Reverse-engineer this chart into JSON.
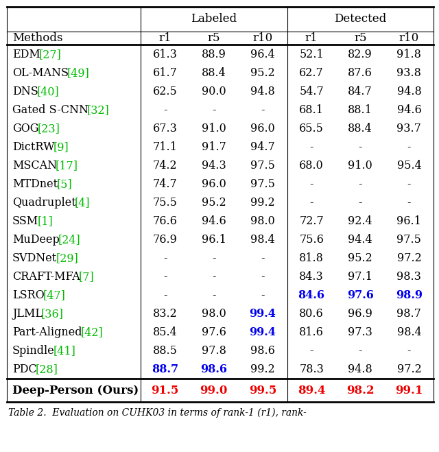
{
  "rows": [
    {
      "method": "EDM",
      "ref": "27",
      "vals": [
        "61.3",
        "88.9",
        "96.4",
        "52.1",
        "82.9",
        "91.8"
      ],
      "bold": [
        false,
        false,
        false,
        false,
        false,
        false
      ],
      "blue": [
        false,
        false,
        false,
        false,
        false,
        false
      ]
    },
    {
      "method": "OL-MANS",
      "ref": "49",
      "vals": [
        "61.7",
        "88.4",
        "95.2",
        "62.7",
        "87.6",
        "93.8"
      ],
      "bold": [
        false,
        false,
        false,
        false,
        false,
        false
      ],
      "blue": [
        false,
        false,
        false,
        false,
        false,
        false
      ]
    },
    {
      "method": "DNS",
      "ref": "40",
      "vals": [
        "62.5",
        "90.0",
        "94.8",
        "54.7",
        "84.7",
        "94.8"
      ],
      "bold": [
        false,
        false,
        false,
        false,
        false,
        false
      ],
      "blue": [
        false,
        false,
        false,
        false,
        false,
        false
      ]
    },
    {
      "method": "Gated S-CNN",
      "ref": "32",
      "vals": [
        "-",
        "-",
        "-",
        "68.1",
        "88.1",
        "94.6"
      ],
      "bold": [
        false,
        false,
        false,
        false,
        false,
        false
      ],
      "blue": [
        false,
        false,
        false,
        false,
        false,
        false
      ]
    },
    {
      "method": "GOG",
      "ref": "23",
      "vals": [
        "67.3",
        "91.0",
        "96.0",
        "65.5",
        "88.4",
        "93.7"
      ],
      "bold": [
        false,
        false,
        false,
        false,
        false,
        false
      ],
      "blue": [
        false,
        false,
        false,
        false,
        false,
        false
      ]
    },
    {
      "method": "DictRW",
      "ref": "9",
      "vals": [
        "71.1",
        "91.7",
        "94.7",
        "-",
        "-",
        "-"
      ],
      "bold": [
        false,
        false,
        false,
        false,
        false,
        false
      ],
      "blue": [
        false,
        false,
        false,
        false,
        false,
        false
      ]
    },
    {
      "method": "MSCAN",
      "ref": "17",
      "vals": [
        "74.2",
        "94.3",
        "97.5",
        "68.0",
        "91.0",
        "95.4"
      ],
      "bold": [
        false,
        false,
        false,
        false,
        false,
        false
      ],
      "blue": [
        false,
        false,
        false,
        false,
        false,
        false
      ]
    },
    {
      "method": "MTDnet",
      "ref": "5",
      "vals": [
        "74.7",
        "96.0",
        "97.5",
        "-",
        "-",
        "-"
      ],
      "bold": [
        false,
        false,
        false,
        false,
        false,
        false
      ],
      "blue": [
        false,
        false,
        false,
        false,
        false,
        false
      ]
    },
    {
      "method": "Quadruplet",
      "ref": "4",
      "vals": [
        "75.5",
        "95.2",
        "99.2",
        "-",
        "-",
        "-"
      ],
      "bold": [
        false,
        false,
        false,
        false,
        false,
        false
      ],
      "blue": [
        false,
        false,
        false,
        false,
        false,
        false
      ]
    },
    {
      "method": "SSM",
      "ref": "1",
      "vals": [
        "76.6",
        "94.6",
        "98.0",
        "72.7",
        "92.4",
        "96.1"
      ],
      "bold": [
        false,
        false,
        false,
        false,
        false,
        false
      ],
      "blue": [
        false,
        false,
        false,
        false,
        false,
        false
      ]
    },
    {
      "method": "MuDeep",
      "ref": "24",
      "vals": [
        "76.9",
        "96.1",
        "98.4",
        "75.6",
        "94.4",
        "97.5"
      ],
      "bold": [
        false,
        false,
        false,
        false,
        false,
        false
      ],
      "blue": [
        false,
        false,
        false,
        false,
        false,
        false
      ]
    },
    {
      "method": "SVDNet",
      "ref": "29",
      "vals": [
        "-",
        "-",
        "-",
        "81.8",
        "95.2",
        "97.2"
      ],
      "bold": [
        false,
        false,
        false,
        false,
        false,
        false
      ],
      "blue": [
        false,
        false,
        false,
        false,
        false,
        false
      ]
    },
    {
      "method": "CRAFT-MFA",
      "ref": "7",
      "vals": [
        "-",
        "-",
        "-",
        "84.3",
        "97.1",
        "98.3"
      ],
      "bold": [
        false,
        false,
        false,
        false,
        false,
        false
      ],
      "blue": [
        false,
        false,
        false,
        false,
        false,
        false
      ]
    },
    {
      "method": "LSRO",
      "ref": "47",
      "vals": [
        "-",
        "-",
        "-",
        "84.6",
        "97.6",
        "98.9"
      ],
      "bold": [
        false,
        false,
        false,
        true,
        true,
        true
      ],
      "blue": [
        false,
        false,
        false,
        true,
        true,
        true
      ]
    },
    {
      "method": "JLML",
      "ref": "36",
      "vals": [
        "83.2",
        "98.0",
        "99.4",
        "80.6",
        "96.9",
        "98.7"
      ],
      "bold": [
        false,
        false,
        true,
        false,
        false,
        false
      ],
      "blue": [
        false,
        false,
        true,
        false,
        false,
        false
      ]
    },
    {
      "method": "Part-Aligned",
      "ref": "42",
      "vals": [
        "85.4",
        "97.6",
        "99.4",
        "81.6",
        "97.3",
        "98.4"
      ],
      "bold": [
        false,
        false,
        true,
        false,
        false,
        false
      ],
      "blue": [
        false,
        false,
        true,
        false,
        false,
        false
      ]
    },
    {
      "method": "Spindle",
      "ref": "41",
      "vals": [
        "88.5",
        "97.8",
        "98.6",
        "-",
        "-",
        "-"
      ],
      "bold": [
        false,
        false,
        false,
        false,
        false,
        false
      ],
      "blue": [
        false,
        false,
        false,
        false,
        false,
        false
      ]
    },
    {
      "method": "PDC",
      "ref": "28",
      "vals": [
        "88.7",
        "98.6",
        "99.2",
        "78.3",
        "94.8",
        "97.2"
      ],
      "bold": [
        true,
        true,
        false,
        false,
        false,
        false
      ],
      "blue": [
        true,
        true,
        false,
        false,
        false,
        false
      ]
    }
  ],
  "last_row": {
    "method": "Deep-Person (Ours)",
    "vals": [
      "91.5",
      "99.0",
      "99.5",
      "89.4",
      "98.2",
      "99.1"
    ]
  },
  "caption": "Table 2.  Evaluation on CUHK03 in terms of rank-1 (r1), rank-",
  "green_color": "#00BB00",
  "blue_color": "#0000EE",
  "red_color": "#EE0000",
  "black_color": "#000000",
  "col_headers": [
    "r1",
    "r5",
    "r10",
    "r1",
    "r5",
    "r10"
  ],
  "group_headers": [
    "Labeled",
    "Detected"
  ]
}
